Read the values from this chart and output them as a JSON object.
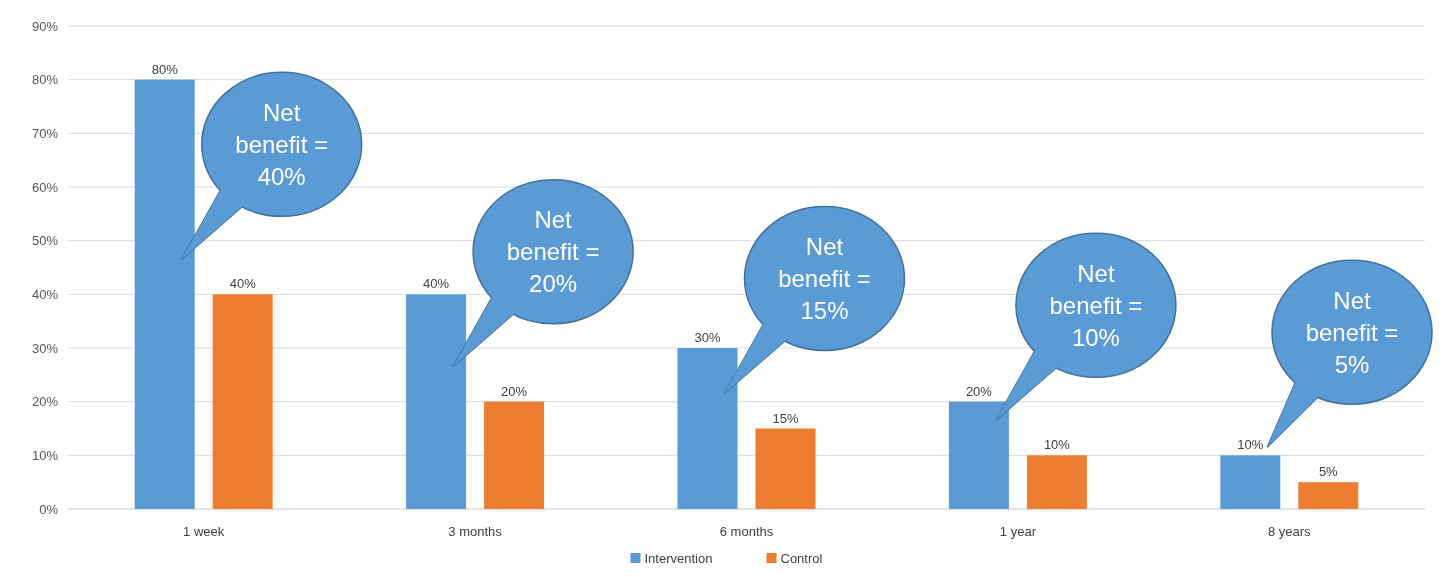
{
  "chart_data": {
    "type": "bar",
    "categories": [
      "1 week",
      "3 months",
      "6 months",
      "1 year",
      "8 years"
    ],
    "series": [
      {
        "name": "Intervention",
        "color": "#5b9bd5",
        "values": [
          80,
          40,
          30,
          20,
          10
        ]
      },
      {
        "name": "Control",
        "color": "#ed7d31",
        "values": [
          40,
          20,
          15,
          10,
          5
        ]
      }
    ],
    "ylim": [
      0,
      90
    ],
    "yticks": [
      {
        "value": 0,
        "label": "0%"
      },
      {
        "value": 10,
        "label": "10%"
      },
      {
        "value": 20,
        "label": "20%"
      },
      {
        "value": 30,
        "label": "30%"
      },
      {
        "value": 40,
        "label": "40%"
      },
      {
        "value": 50,
        "label": "50%"
      },
      {
        "value": 60,
        "label": "60%"
      },
      {
        "value": 70,
        "label": "70%"
      },
      {
        "value": 80,
        "label": "80%"
      },
      {
        "value": 90,
        "label": "90%"
      }
    ],
    "value_labels": [
      [
        "80%",
        "40%",
        "30%",
        "20%",
        "10%"
      ],
      [
        "40%",
        "20%",
        "15%",
        "10%",
        "5%"
      ]
    ],
    "annotations": [
      "Net benefit = 40%",
      "Net benefit = 20%",
      "Net benefit = 15%",
      "Net benefit = 10%",
      "Net benefit = 5%"
    ],
    "grid": "y",
    "legend": "bottom"
  }
}
